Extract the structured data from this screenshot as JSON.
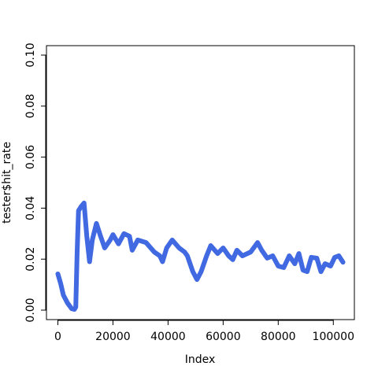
{
  "chart_data": {
    "type": "line",
    "x_label": "Index",
    "y_label": "tester$hit_rate",
    "x": [
      0,
      1000,
      2000,
      3500,
      5000,
      6000,
      6500,
      7000,
      7500,
      8500,
      9500,
      10500,
      11500,
      12500,
      14000,
      15500,
      17000,
      19000,
      20000,
      22000,
      24000,
      26000,
      27000,
      29000,
      32000,
      35000,
      37000,
      38000,
      39500,
      41500,
      44000,
      46000,
      47000,
      49000,
      50500,
      52000,
      54000,
      55500,
      58000,
      60000,
      62000,
      63500,
      65000,
      67000,
      70000,
      72500,
      74000,
      76000,
      78000,
      80000,
      82000,
      84000,
      86000,
      87500,
      89000,
      90500,
      92000,
      94000,
      95500,
      97000,
      99000,
      100500,
      102000,
      103500
    ],
    "values": [
      0.0142,
      0.0105,
      0.0059,
      0.0028,
      0.0006,
      0.0003,
      0.0012,
      0.0228,
      0.039,
      0.0407,
      0.042,
      0.029,
      0.019,
      0.0275,
      0.034,
      0.029,
      0.0244,
      0.0275,
      0.0296,
      0.026,
      0.03,
      0.029,
      0.0235,
      0.0275,
      0.0265,
      0.0228,
      0.0213,
      0.019,
      0.0244,
      0.0275,
      0.0244,
      0.0228,
      0.0213,
      0.0151,
      0.012,
      0.0151,
      0.0213,
      0.0253,
      0.0222,
      0.0244,
      0.0213,
      0.0198,
      0.0235,
      0.0213,
      0.0228,
      0.0265,
      0.0235,
      0.0204,
      0.0213,
      0.0173,
      0.0167,
      0.0213,
      0.0182,
      0.0222,
      0.0157,
      0.0151,
      0.0207,
      0.0204,
      0.0151,
      0.0182,
      0.0173,
      0.0207,
      0.0213,
      0.0188
    ],
    "color": "#4169e1",
    "xlim": [
      -4140,
      107640
    ],
    "ylim": [
      -0.0037,
      0.1037
    ],
    "xticks": [
      0,
      20000,
      40000,
      60000,
      80000,
      100000
    ],
    "yticks": [
      {
        "value": 0,
        "label": "0.00"
      },
      {
        "value": 0.02,
        "label": "0.02"
      },
      {
        "value": 0.04,
        "label": "0.04"
      },
      {
        "value": 0.06,
        "label": "0.06"
      },
      {
        "value": 0.08,
        "label": "0.08"
      },
      {
        "value": 0.1,
        "label": "0.10"
      }
    ]
  }
}
